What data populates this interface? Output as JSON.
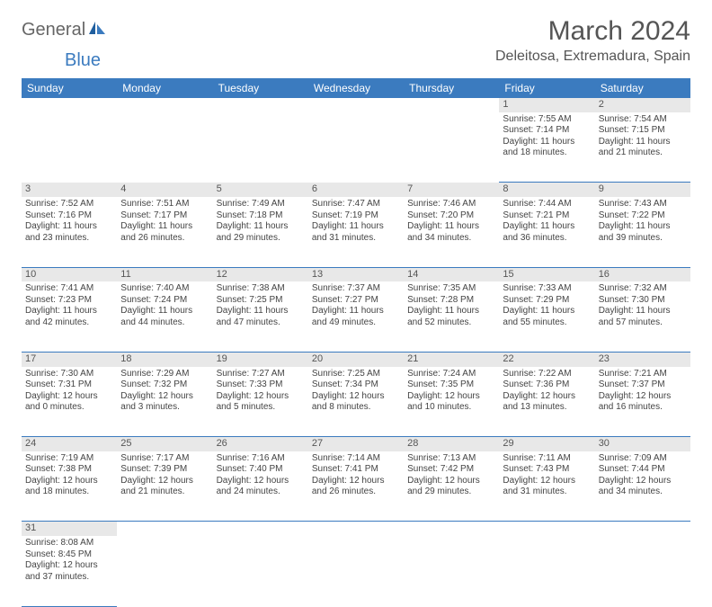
{
  "logo": {
    "part1": "General",
    "part2": "Blue"
  },
  "title": "March 2024",
  "location": "Deleitosa, Extremadura, Spain",
  "colors": {
    "header_bg": "#3b7bbf",
    "daynum_bg": "#e8e8e8",
    "rule": "#3b7bbf"
  },
  "day_headers": [
    "Sunday",
    "Monday",
    "Tuesday",
    "Wednesday",
    "Thursday",
    "Friday",
    "Saturday"
  ],
  "weeks": [
    {
      "nums": [
        "",
        "",
        "",
        "",
        "",
        "1",
        "2"
      ],
      "cells": [
        null,
        null,
        null,
        null,
        null,
        {
          "sr": "Sunrise: 7:55 AM",
          "ss": "Sunset: 7:14 PM",
          "d1": "Daylight: 11 hours",
          "d2": "and 18 minutes."
        },
        {
          "sr": "Sunrise: 7:54 AM",
          "ss": "Sunset: 7:15 PM",
          "d1": "Daylight: 11 hours",
          "d2": "and 21 minutes."
        }
      ]
    },
    {
      "nums": [
        "3",
        "4",
        "5",
        "6",
        "7",
        "8",
        "9"
      ],
      "cells": [
        {
          "sr": "Sunrise: 7:52 AM",
          "ss": "Sunset: 7:16 PM",
          "d1": "Daylight: 11 hours",
          "d2": "and 23 minutes."
        },
        {
          "sr": "Sunrise: 7:51 AM",
          "ss": "Sunset: 7:17 PM",
          "d1": "Daylight: 11 hours",
          "d2": "and 26 minutes."
        },
        {
          "sr": "Sunrise: 7:49 AM",
          "ss": "Sunset: 7:18 PM",
          "d1": "Daylight: 11 hours",
          "d2": "and 29 minutes."
        },
        {
          "sr": "Sunrise: 7:47 AM",
          "ss": "Sunset: 7:19 PM",
          "d1": "Daylight: 11 hours",
          "d2": "and 31 minutes."
        },
        {
          "sr": "Sunrise: 7:46 AM",
          "ss": "Sunset: 7:20 PM",
          "d1": "Daylight: 11 hours",
          "d2": "and 34 minutes."
        },
        {
          "sr": "Sunrise: 7:44 AM",
          "ss": "Sunset: 7:21 PM",
          "d1": "Daylight: 11 hours",
          "d2": "and 36 minutes."
        },
        {
          "sr": "Sunrise: 7:43 AM",
          "ss": "Sunset: 7:22 PM",
          "d1": "Daylight: 11 hours",
          "d2": "and 39 minutes."
        }
      ]
    },
    {
      "nums": [
        "10",
        "11",
        "12",
        "13",
        "14",
        "15",
        "16"
      ],
      "cells": [
        {
          "sr": "Sunrise: 7:41 AM",
          "ss": "Sunset: 7:23 PM",
          "d1": "Daylight: 11 hours",
          "d2": "and 42 minutes."
        },
        {
          "sr": "Sunrise: 7:40 AM",
          "ss": "Sunset: 7:24 PM",
          "d1": "Daylight: 11 hours",
          "d2": "and 44 minutes."
        },
        {
          "sr": "Sunrise: 7:38 AM",
          "ss": "Sunset: 7:25 PM",
          "d1": "Daylight: 11 hours",
          "d2": "and 47 minutes."
        },
        {
          "sr": "Sunrise: 7:37 AM",
          "ss": "Sunset: 7:27 PM",
          "d1": "Daylight: 11 hours",
          "d2": "and 49 minutes."
        },
        {
          "sr": "Sunrise: 7:35 AM",
          "ss": "Sunset: 7:28 PM",
          "d1": "Daylight: 11 hours",
          "d2": "and 52 minutes."
        },
        {
          "sr": "Sunrise: 7:33 AM",
          "ss": "Sunset: 7:29 PM",
          "d1": "Daylight: 11 hours",
          "d2": "and 55 minutes."
        },
        {
          "sr": "Sunrise: 7:32 AM",
          "ss": "Sunset: 7:30 PM",
          "d1": "Daylight: 11 hours",
          "d2": "and 57 minutes."
        }
      ]
    },
    {
      "nums": [
        "17",
        "18",
        "19",
        "20",
        "21",
        "22",
        "23"
      ],
      "cells": [
        {
          "sr": "Sunrise: 7:30 AM",
          "ss": "Sunset: 7:31 PM",
          "d1": "Daylight: 12 hours",
          "d2": "and 0 minutes."
        },
        {
          "sr": "Sunrise: 7:29 AM",
          "ss": "Sunset: 7:32 PM",
          "d1": "Daylight: 12 hours",
          "d2": "and 3 minutes."
        },
        {
          "sr": "Sunrise: 7:27 AM",
          "ss": "Sunset: 7:33 PM",
          "d1": "Daylight: 12 hours",
          "d2": "and 5 minutes."
        },
        {
          "sr": "Sunrise: 7:25 AM",
          "ss": "Sunset: 7:34 PM",
          "d1": "Daylight: 12 hours",
          "d2": "and 8 minutes."
        },
        {
          "sr": "Sunrise: 7:24 AM",
          "ss": "Sunset: 7:35 PM",
          "d1": "Daylight: 12 hours",
          "d2": "and 10 minutes."
        },
        {
          "sr": "Sunrise: 7:22 AM",
          "ss": "Sunset: 7:36 PM",
          "d1": "Daylight: 12 hours",
          "d2": "and 13 minutes."
        },
        {
          "sr": "Sunrise: 7:21 AM",
          "ss": "Sunset: 7:37 PM",
          "d1": "Daylight: 12 hours",
          "d2": "and 16 minutes."
        }
      ]
    },
    {
      "nums": [
        "24",
        "25",
        "26",
        "27",
        "28",
        "29",
        "30"
      ],
      "cells": [
        {
          "sr": "Sunrise: 7:19 AM",
          "ss": "Sunset: 7:38 PM",
          "d1": "Daylight: 12 hours",
          "d2": "and 18 minutes."
        },
        {
          "sr": "Sunrise: 7:17 AM",
          "ss": "Sunset: 7:39 PM",
          "d1": "Daylight: 12 hours",
          "d2": "and 21 minutes."
        },
        {
          "sr": "Sunrise: 7:16 AM",
          "ss": "Sunset: 7:40 PM",
          "d1": "Daylight: 12 hours",
          "d2": "and 24 minutes."
        },
        {
          "sr": "Sunrise: 7:14 AM",
          "ss": "Sunset: 7:41 PM",
          "d1": "Daylight: 12 hours",
          "d2": "and 26 minutes."
        },
        {
          "sr": "Sunrise: 7:13 AM",
          "ss": "Sunset: 7:42 PM",
          "d1": "Daylight: 12 hours",
          "d2": "and 29 minutes."
        },
        {
          "sr": "Sunrise: 7:11 AM",
          "ss": "Sunset: 7:43 PM",
          "d1": "Daylight: 12 hours",
          "d2": "and 31 minutes."
        },
        {
          "sr": "Sunrise: 7:09 AM",
          "ss": "Sunset: 7:44 PM",
          "d1": "Daylight: 12 hours",
          "d2": "and 34 minutes."
        }
      ]
    },
    {
      "nums": [
        "31",
        "",
        "",
        "",
        "",
        "",
        ""
      ],
      "cells": [
        {
          "sr": "Sunrise: 8:08 AM",
          "ss": "Sunset: 8:45 PM",
          "d1": "Daylight: 12 hours",
          "d2": "and 37 minutes."
        },
        null,
        null,
        null,
        null,
        null,
        null
      ]
    }
  ]
}
